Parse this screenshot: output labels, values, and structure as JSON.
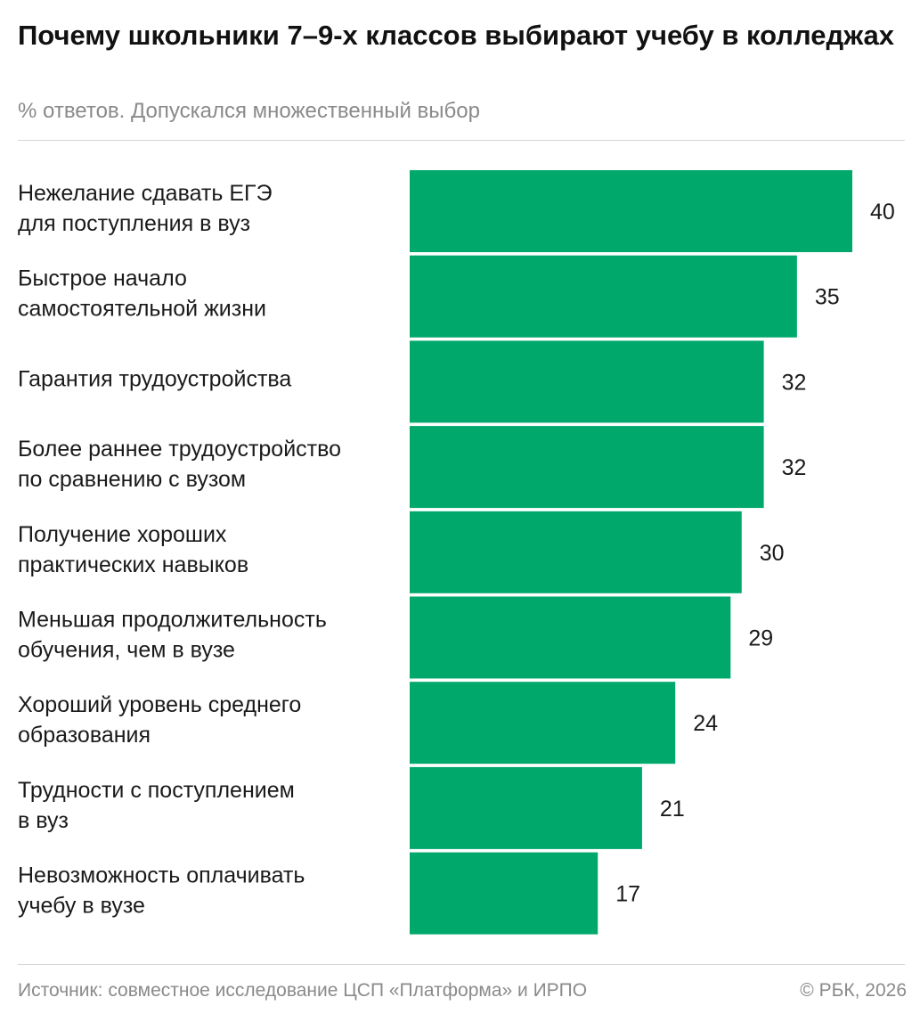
{
  "header": {
    "title": "Почему школьники 7–9-х классов выбирают учебу в колледжах",
    "subtitle": "% ответов. Допускался множественный выбор"
  },
  "footer": {
    "source": "Источник: совместное исследование ЦСП «Платформа» и ИРПО",
    "copyright": "© РБК, 2026"
  },
  "chart_data": {
    "type": "bar",
    "orientation": "horizontal",
    "title": "Почему школьники 7–9-х классов выбирают учебу в колледжах",
    "subtitle": "% ответов. Допускался множественный выбор",
    "categories": [
      [
        "Нежелание сдавать ЕГЭ",
        "для поступления в вуз"
      ],
      [
        "Быстрое начало",
        "самостоятельной жизни"
      ],
      [
        "Гарантия трудоустройства"
      ],
      [
        "Более раннее трудоустройство",
        "по сравнению с вузом"
      ],
      [
        "Получение хороших",
        "практических навыков"
      ],
      [
        "Меньшая продолжительность",
        "обучения, чем в вузе"
      ],
      [
        "Хороший уровень среднего",
        "образования"
      ],
      [
        "Трудности с поступлением",
        "в вуз"
      ],
      [
        "Невозможность оплачивать",
        "учебу в вузе"
      ]
    ],
    "values": [
      40,
      35,
      32,
      32,
      30,
      29,
      24,
      21,
      17
    ],
    "xlim": [
      0,
      40
    ],
    "grid": false,
    "legend": "none",
    "bar_color": "#00a86b",
    "data_labels": true
  }
}
